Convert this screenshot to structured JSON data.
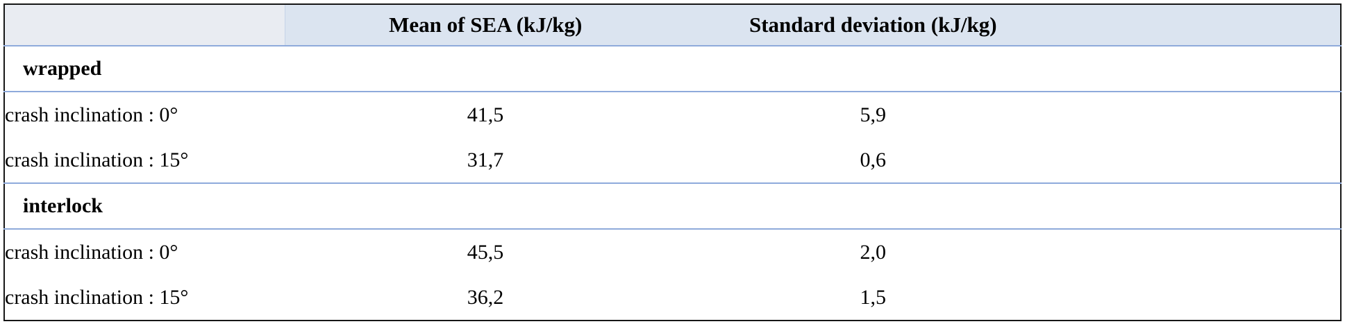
{
  "table": {
    "columns": [
      "",
      "Mean of SEA (kJ/kg)",
      "Standard deviation (kJ/kg)"
    ],
    "groups": [
      {
        "label": "wrapped",
        "rows": [
          {
            "label": "crash inclination : 0°",
            "mean": "41,5",
            "std": "5,9"
          },
          {
            "label": "crash inclination : 15°",
            "mean": "31,7",
            "std": "0,6"
          }
        ]
      },
      {
        "label": "interlock",
        "rows": [
          {
            "label": "crash inclination : 0°",
            "mean": "45,5",
            "std": "2,0"
          },
          {
            "label": "crash inclination : 15°",
            "mean": "36,2",
            "std": "1,5"
          }
        ]
      }
    ]
  },
  "chart_data": {
    "type": "table",
    "columns": [
      "",
      "Mean of SEA (kJ/kg)",
      "Standard deviation (kJ/kg)"
    ],
    "rows": [
      [
        "wrapped",
        "",
        ""
      ],
      [
        "crash inclination : 0°",
        "41,5",
        "5,9"
      ],
      [
        "crash inclination : 15°",
        "31,7",
        "0,6"
      ],
      [
        "interlock",
        "",
        ""
      ],
      [
        "crash inclination : 0°",
        "45,5",
        "2,0"
      ],
      [
        "crash inclination : 15°",
        "36,2",
        "1,5"
      ]
    ]
  },
  "colors": {
    "line": "#8eaadb",
    "header-bg": "#dbe4f0",
    "corner-bg": "#e9ecf2",
    "corner-divider": "#c6d3e8",
    "outer-border": "#161616"
  }
}
